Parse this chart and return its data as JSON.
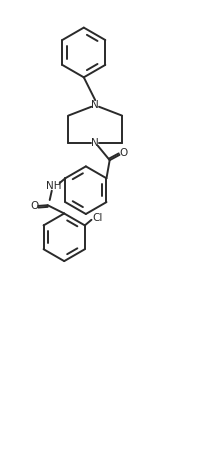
{
  "bg_color": "#ffffff",
  "line_color": "#2a2a2a",
  "line_width": 1.4,
  "figsize": [
    2.09,
    4.57
  ],
  "dpi": 100,
  "xlim": [
    0,
    10
  ],
  "ylim": [
    0,
    22
  ],
  "font_size": 7.5
}
